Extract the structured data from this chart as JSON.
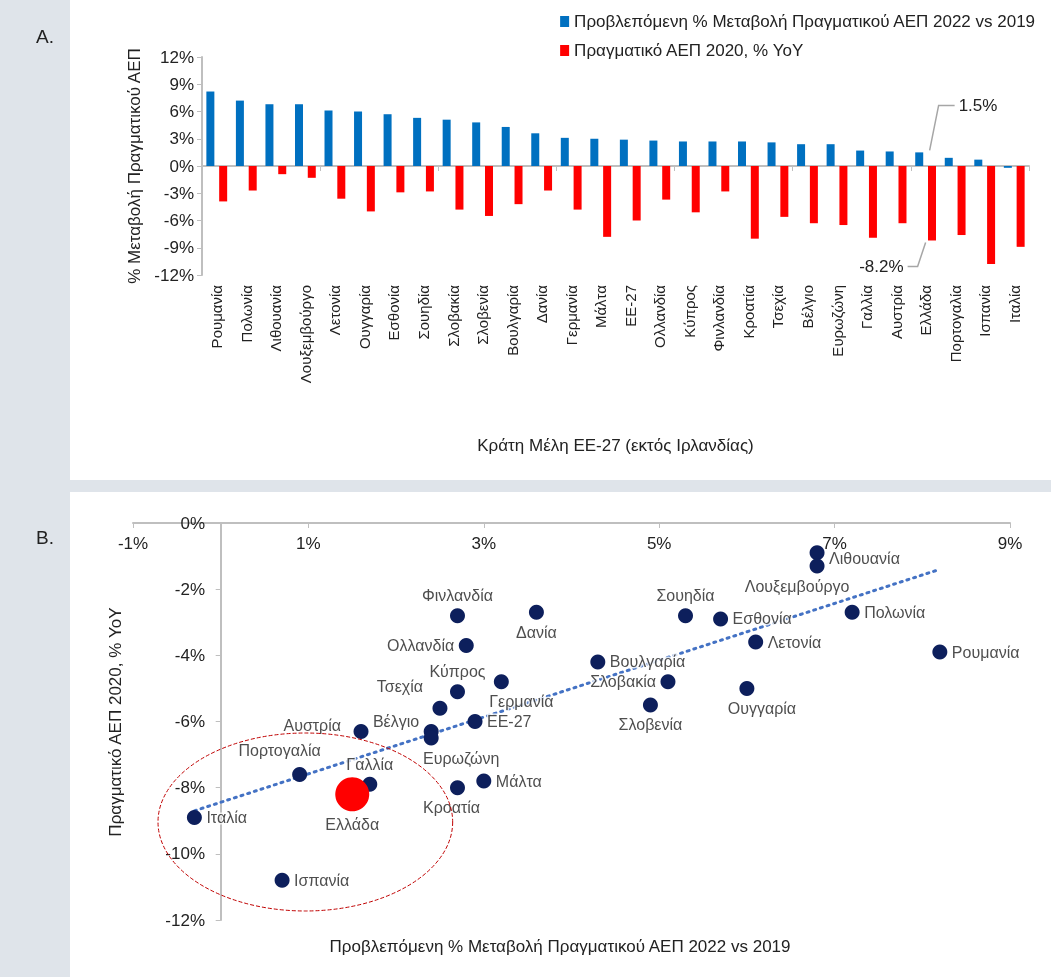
{
  "chart_data": [
    {
      "type": "bar",
      "xlabel": "Κράτη Μέλη ΕΕ-27 (εκτός Ιρλανδίας)",
      "ylabel": "% Μεταβολή Πραγματικού ΑΕΠ",
      "categories": [
        "Ρουμανία",
        "Πολωνία",
        "Λιθουανία",
        "Λουξεμβούργο",
        "Λετονία",
        "Ουγγαρία",
        "Εσθονία",
        "Σουηδία",
        "Σλοβακία",
        "Σλοβενία",
        "Βουλγαρία",
        "Δανία",
        "Γερμανία",
        "Μάλτα",
        "ΕΕ-27",
        "Ολλανδία",
        "Κύπρος",
        "Φινλανδία",
        "Κροατία",
        "Τσεχία",
        "Βέλγιο",
        "Ευρωζώνη",
        "Γαλλία",
        "Αυστρία",
        "Ελλάδα",
        "Πορτογαλία",
        "Ισπανία",
        "Ιταλία"
      ],
      "series": [
        {
          "name": "Προβλεπόμενη % Μεταβολή Πραγματικού ΑΕΠ 2022 vs 2019",
          "color": "#0070c0",
          "values": [
            8.2,
            7.2,
            6.8,
            6.8,
            6.1,
            6.0,
            5.7,
            5.3,
            5.1,
            4.8,
            4.3,
            3.6,
            3.1,
            3.0,
            2.9,
            2.8,
            2.7,
            2.7,
            2.7,
            2.6,
            2.4,
            2.4,
            1.7,
            1.6,
            1.5,
            0.9,
            0.7,
            -0.2
          ]
        },
        {
          "name": "Πραγματικό ΑΕΠ 2020, % YoY",
          "color": "#ff0000",
          "values": [
            -3.9,
            -2.7,
            -0.9,
            -1.3,
            -3.6,
            -5.0,
            -2.9,
            -2.8,
            -4.8,
            -5.5,
            -4.2,
            -2.7,
            -4.8,
            -7.8,
            -6.0,
            -3.7,
            -5.1,
            -2.8,
            -8.0,
            -5.6,
            -6.3,
            -6.5,
            -7.9,
            -6.3,
            -8.2,
            -7.6,
            -10.8,
            -8.9
          ]
        }
      ],
      "ylim": [
        -12,
        12
      ],
      "yticks": [
        {
          "value": -12,
          "label": "-12%"
        },
        {
          "value": -9,
          "label": "-9%"
        },
        {
          "value": -6,
          "label": "-6%"
        },
        {
          "value": -3,
          "label": "-3%"
        },
        {
          "value": 0,
          "label": "0%"
        },
        {
          "value": 3,
          "label": "3%"
        },
        {
          "value": 6,
          "label": "6%"
        },
        {
          "value": 9,
          "label": "9%"
        },
        {
          "value": 12,
          "label": "12%"
        }
      ],
      "legend": "top right",
      "annotations": [
        "A.",
        {
          "text": "1.5%",
          "x": "Ελλάδα",
          "y": 1.5
        },
        {
          "text": "-8.2%",
          "x": "Ελλάδα",
          "y": -8.2
        }
      ]
    },
    {
      "type": "scatter",
      "xlabel": "Προβλεπόμενη % Μεταβολή Πραγματικού ΑΕΠ 2022 vs 2019",
      "ylabel": "Πραγματικό ΑΕΠ 2020, % YoY",
      "marker": "circle",
      "series": [
        {
          "color": "#0d1f5c",
          "x": [
            8.2,
            7.2,
            6.8,
            6.8,
            6.1,
            6.0,
            5.7,
            5.3,
            5.1,
            4.9,
            4.3,
            3.6,
            3.2,
            3.0,
            2.9,
            2.8,
            2.7,
            2.7,
            2.7,
            2.5,
            2.4,
            2.4,
            1.7,
            1.6,
            0.9,
            0.7,
            -0.3
          ],
          "values": [
            -3.9,
            -2.7,
            -0.9,
            -1.3,
            -3.6,
            -5.0,
            -2.9,
            -2.8,
            -4.8,
            -5.5,
            -4.2,
            -2.7,
            -4.8,
            -7.8,
            -6.0,
            -3.7,
            -5.1,
            -2.8,
            -8.0,
            -5.6,
            -6.3,
            -6.5,
            -7.9,
            -6.3,
            -7.6,
            -10.8,
            -8.9
          ]
        },
        {
          "color": "#ff0000",
          "x": [
            1.5
          ],
          "values": [
            -8.2
          ]
        },
        {
          "type": "line",
          "color": "#4472c4",
          "line_style": "dotted",
          "marker": "none",
          "x": [
            -0.3,
            8.2
          ],
          "values": [
            -8.7,
            -1.4
          ]
        }
      ],
      "xlim": [
        -1,
        9
      ],
      "xticks": [
        {
          "value": -1,
          "label": "-1%"
        },
        {
          "value": 1,
          "label": "1%"
        },
        {
          "value": 3,
          "label": "3%"
        },
        {
          "value": 5,
          "label": "5%"
        },
        {
          "value": 7,
          "label": "7%"
        },
        {
          "value": 9,
          "label": "9%"
        }
      ],
      "ylim": [
        -12,
        0
      ],
      "yticks": [
        {
          "value": -12,
          "label": "-12%"
        },
        {
          "value": -10,
          "label": "-10%"
        },
        {
          "value": -8,
          "label": "-8%"
        },
        {
          "value": -6,
          "label": "-6%"
        },
        {
          "value": -4,
          "label": "-4%"
        },
        {
          "value": -2,
          "label": "-2%"
        },
        {
          "value": 0,
          "label": "0%"
        }
      ],
      "annotations": [
        "B.",
        {
          "text": "Ρουμανία",
          "x": 8.2,
          "y": -3.9
        },
        {
          "text": "Πολωνία",
          "x": 7.2,
          "y": -2.7
        },
        {
          "text": "Λιθουανία",
          "x": 6.8,
          "y": -0.9
        },
        {
          "text": "Λουξεμβούργο",
          "x": 6.8,
          "y": -1.3
        },
        {
          "text": "Λετονία",
          "x": 6.1,
          "y": -3.6
        },
        {
          "text": "Ουγγαρία",
          "x": 6.0,
          "y": -5.0
        },
        {
          "text": "Εσθονία",
          "x": 5.7,
          "y": -2.9
        },
        {
          "text": "Σουηδία",
          "x": 5.3,
          "y": -2.8
        },
        {
          "text": "Σλοβακία",
          "x": 5.1,
          "y": -4.8
        },
        {
          "text": "Σλοβενία",
          "x": 4.9,
          "y": -5.5
        },
        {
          "text": "Βουλγαρία",
          "x": 4.3,
          "y": -4.2
        },
        {
          "text": "Δανία",
          "x": 3.6,
          "y": -2.7
        },
        {
          "text": "Γερμανία",
          "x": 3.2,
          "y": -4.8
        },
        {
          "text": "Μάλτα",
          "x": 3.0,
          "y": -7.8
        },
        {
          "text": "ΕΕ-27",
          "x": 2.9,
          "y": -6.0
        },
        {
          "text": "Ολλανδία",
          "x": 2.8,
          "y": -3.7
        },
        {
          "text": "Κύπρος",
          "x": 2.7,
          "y": -5.1
        },
        {
          "text": "Φινλανδία",
          "x": 2.7,
          "y": -2.8
        },
        {
          "text": "Κροατία",
          "x": 2.7,
          "y": -8.0
        },
        {
          "text": "Τσεχία",
          "x": 2.5,
          "y": -5.6
        },
        {
          "text": "Βέλγιο",
          "x": 2.4,
          "y": -6.3
        },
        {
          "text": "Ευρωζώνη",
          "x": 2.4,
          "y": -6.5
        },
        {
          "text": "Γαλλία",
          "x": 1.7,
          "y": -7.9
        },
        {
          "text": "Αυστρία",
          "x": 1.6,
          "y": -6.3
        },
        {
          "text": "Πορτογαλία",
          "x": 0.9,
          "y": -7.6
        },
        {
          "text": "Ισπανία",
          "x": 0.7,
          "y": -10.8
        },
        {
          "text": "Ιταλία",
          "x": -0.3,
          "y": -8.9
        },
        {
          "text": "Ελλάδα",
          "x": 1.5,
          "y": -8.2
        }
      ]
    }
  ]
}
